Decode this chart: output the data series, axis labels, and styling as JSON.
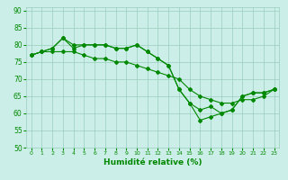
{
  "xlabel": "Humidité relative (%)",
  "bg_color": "#cceee8",
  "grid_color": "#99ccbb",
  "line_color": "#008800",
  "xlim": [
    -0.5,
    23.5
  ],
  "ylim": [
    50,
    91
  ],
  "yticks": [
    50,
    55,
    60,
    65,
    70,
    75,
    80,
    85,
    90
  ],
  "xticks": [
    0,
    1,
    2,
    3,
    4,
    5,
    6,
    7,
    8,
    9,
    10,
    11,
    12,
    13,
    14,
    15,
    16,
    17,
    18,
    19,
    20,
    21,
    22,
    23
  ],
  "series": [
    {
      "x": [
        0,
        1,
        2,
        3,
        4,
        5,
        6,
        7,
        8,
        9,
        10,
        11,
        12,
        13,
        14,
        15,
        16,
        17,
        18,
        19,
        20,
        21,
        22,
        23
      ],
      "y": [
        77,
        78,
        79,
        82,
        80,
        80,
        80,
        80,
        79,
        79,
        80,
        78,
        76,
        74,
        67,
        63,
        61,
        62,
        60,
        61,
        65,
        66,
        66,
        67
      ]
    },
    {
      "x": [
        0,
        1,
        2,
        3,
        4,
        5,
        6,
        7,
        8,
        9,
        10,
        11,
        12,
        13,
        14,
        15,
        16,
        17,
        18,
        19,
        20,
        21,
        22,
        23
      ],
      "y": [
        77,
        78,
        79,
        82,
        79,
        80,
        80,
        80,
        79,
        79,
        80,
        78,
        76,
        74,
        67,
        63,
        58,
        59,
        60,
        61,
        65,
        66,
        66,
        67
      ]
    },
    {
      "x": [
        0,
        1,
        2,
        3,
        4,
        5,
        6,
        7,
        8,
        9,
        10,
        11,
        12,
        13,
        14,
        15,
        16,
        17,
        18,
        19,
        20,
        21,
        22,
        23
      ],
      "y": [
        77,
        78,
        78,
        78,
        78,
        77,
        76,
        76,
        75,
        75,
        74,
        73,
        72,
        71,
        70,
        67,
        65,
        64,
        63,
        63,
        64,
        64,
        65,
        67
      ]
    }
  ]
}
